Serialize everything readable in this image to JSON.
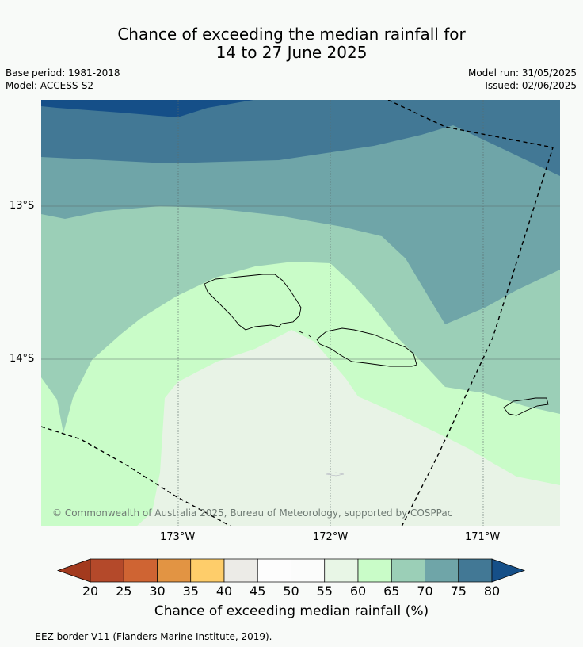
{
  "title_line1": "Chance of exceeding the median rainfall for",
  "title_line2": "14 to 27 June 2025",
  "base_period": "Base period: 1981-2018",
  "model": "Model: ACCESS-S2",
  "model_run": "Model run: 31/05/2025",
  "issued": "Issued: 02/06/2025",
  "map": {
    "lat_labels": [
      "13°S",
      "14°S"
    ],
    "lon_labels": [
      "173°W",
      "172°W",
      "171°W"
    ],
    "credit": "© Commonwealth of Australia 2025, Bureau of Meteorology, supported by COSPPac"
  },
  "colorbar": {
    "ticks": [
      "20",
      "25",
      "30",
      "35",
      "40",
      "45",
      "50",
      "55",
      "60",
      "65",
      "70",
      "75",
      "80"
    ],
    "colors": [
      "#a33a1e",
      "#b4492a",
      "#cf6433",
      "#e29443",
      "#fecd6a",
      "#ecebe7",
      "#fdfdfd",
      "#fbfcfb",
      "#e8f6e6",
      "#c9fcc8",
      "#9bcfb7",
      "#6fa5a8",
      "#427895",
      "#154f88"
    ],
    "title": "Chance of exceeding median rainfall (%)"
  },
  "footer": "--  --  -- EEZ border V11 (Flanders Marine Institute, 2019)."
}
